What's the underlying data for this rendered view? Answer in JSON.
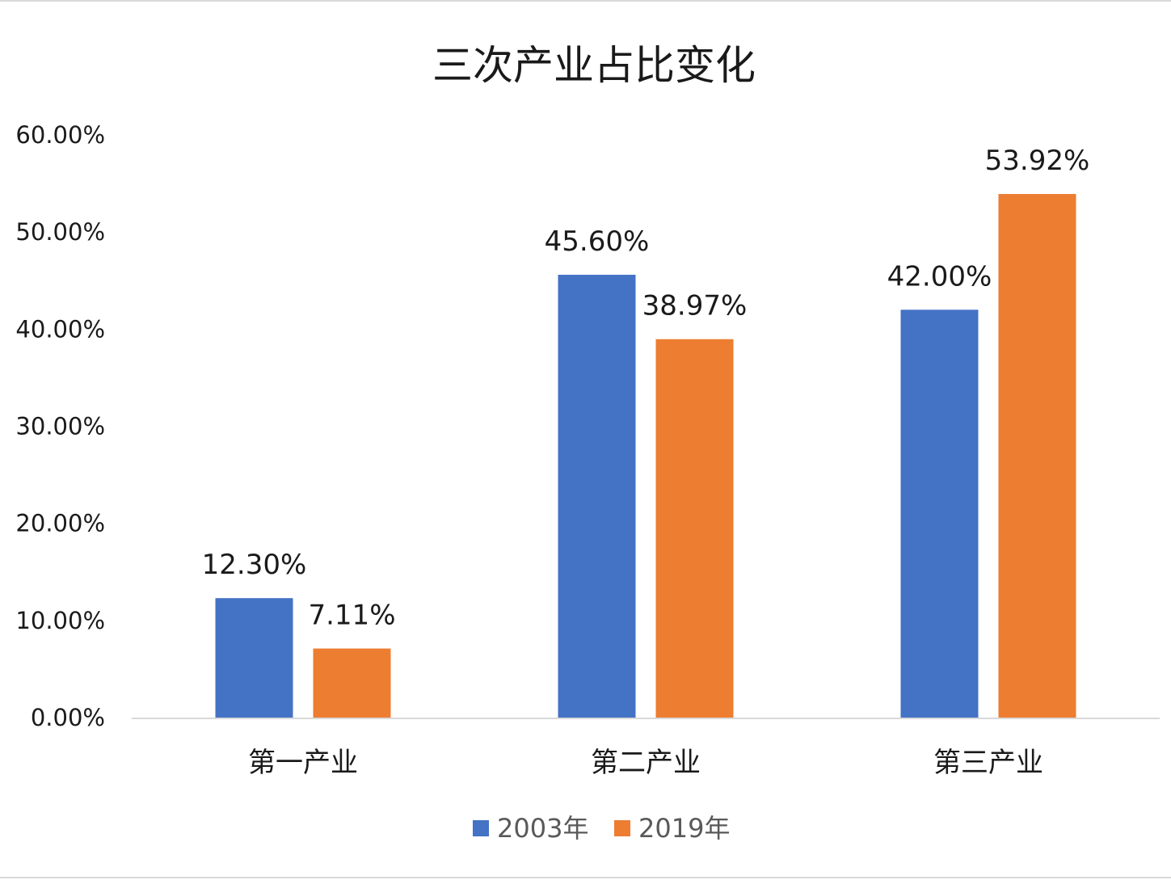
{
  "chart_data": {
    "type": "bar",
    "title": "三次产业占比变化",
    "xlabel": "",
    "ylabel": "",
    "categories": [
      "第一产业",
      "第二产业",
      "第三产业"
    ],
    "series": [
      {
        "name": "2003年",
        "color": "#4472C4",
        "values": [
          12.3,
          45.6,
          42.0
        ],
        "labels": [
          "12.30%",
          "45.60%",
          "42.00%"
        ]
      },
      {
        "name": "2019年",
        "color": "#ED7D31",
        "values": [
          7.11,
          38.97,
          53.92
        ],
        "labels": [
          "7.11%",
          "38.97%",
          "53.92%"
        ]
      }
    ],
    "ylim": [
      0,
      60
    ],
    "yticks": [
      0,
      10,
      20,
      30,
      40,
      50,
      60
    ],
    "ytick_labels": [
      "0.00%",
      "10.00%",
      "20.00%",
      "30.00%",
      "40.00%",
      "50.00%",
      "60.00%"
    ],
    "grid": false,
    "legend_position": "bottom-center",
    "axis_color": "#d9d9d9"
  }
}
